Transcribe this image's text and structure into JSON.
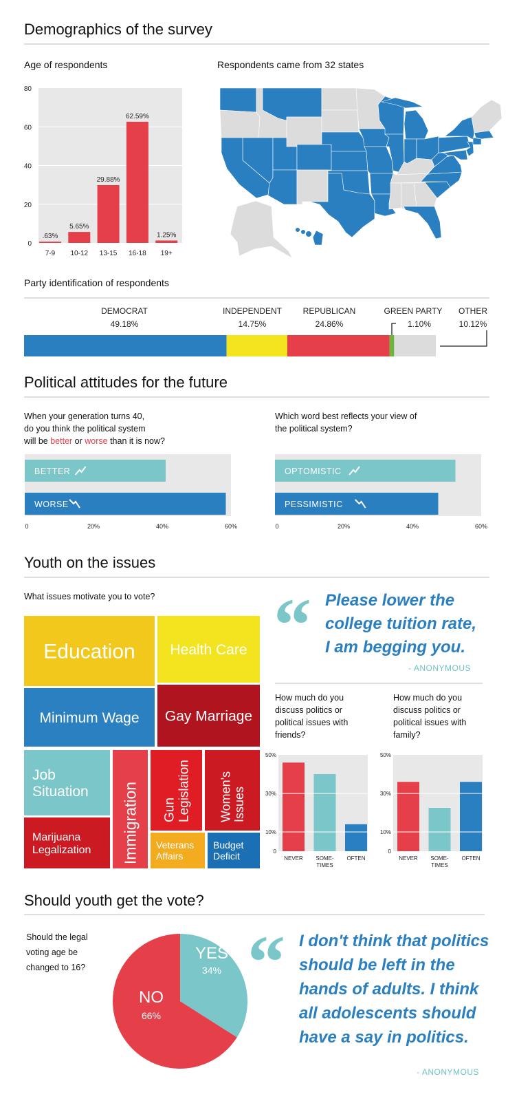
{
  "sections": {
    "demographics": "Demographics of the survey",
    "attitudes": "Political attitudes for the future",
    "issues": "Youth on the issues",
    "vote": "Should youth get the vote?"
  },
  "colors": {
    "red": "#e5404a",
    "blue": "#2a7fc0",
    "teal": "#7ac6c8",
    "yellow": "#f4e41f",
    "green": "#6bb63a",
    "gray": "#dcdcdc",
    "plot_bg": "#e8e8e9"
  },
  "map": {
    "title": "Respondents came from 32 states",
    "highlighted_color": "#2a7fc0",
    "other_color": "#dcdcdc",
    "highlighted_states": [
      "WA",
      "MT",
      "CA",
      "NV",
      "UT",
      "CO",
      "AZ",
      "NE",
      "KS",
      "OK",
      "TX",
      "IA",
      "MO",
      "AR",
      "LA",
      "WI",
      "MI",
      "IL",
      "IN",
      "OH",
      "PA",
      "NY",
      "WV",
      "VA",
      "NC",
      "SC",
      "FL",
      "NJ",
      "MD",
      "CT",
      "MA",
      "HI"
    ]
  },
  "chart_data": [
    {
      "id": "age",
      "type": "bar",
      "title": "Age of respondents",
      "categories": [
        "7-9",
        "10-12",
        "13-15",
        "16-18",
        "19+"
      ],
      "values": [
        0.63,
        5.65,
        29.88,
        62.59,
        1.25
      ],
      "data_labels": [
        ".63%",
        "5.65%",
        "29.88%",
        "62.59%",
        "1.25%"
      ],
      "ylim": [
        0,
        80
      ],
      "yticks": [
        "0",
        "20",
        "40",
        "60",
        "80"
      ],
      "grid": true,
      "color": "#e5404a"
    },
    {
      "id": "party",
      "type": "bar",
      "orientation": "stacked-horizontal",
      "title": "Party identification of respondents",
      "series": [
        {
          "name": "DEMOCRAT",
          "value": 49.18,
          "label": "49.18%",
          "color": "#2a7fc0"
        },
        {
          "name": "INDEPENDENT",
          "value": 14.75,
          "label": "14.75%",
          "color": "#f4e41f"
        },
        {
          "name": "REPUBLICAN",
          "value": 24.86,
          "label": "24.86%",
          "color": "#e5404a"
        },
        {
          "name": "GREEN PARTY",
          "value": 1.1,
          "label": "1.10%",
          "color": "#6bb63a"
        },
        {
          "name": "OTHER",
          "value": 10.12,
          "label": "10.12%",
          "color": "#dcdcdc"
        }
      ]
    },
    {
      "id": "future",
      "type": "bar",
      "orientation": "horizontal",
      "title_lines": [
        "When your generation turns 40,",
        "do you think the political system"
      ],
      "title_line3": {
        "a": "will be ",
        "b": "better",
        "c": " or ",
        "d": "worse",
        "e": " than it is now?"
      },
      "categories": [
        "BETTER",
        "WORSE"
      ],
      "values": [
        41,
        58.5
      ],
      "icons": [
        "trend-up-icon",
        "trend-down-icon"
      ],
      "colors": [
        "#7ac6c8",
        "#2a7fc0"
      ],
      "xlim": [
        0,
        60
      ],
      "xticks": [
        "0",
        "20%",
        "40%",
        "60%"
      ]
    },
    {
      "id": "word",
      "type": "bar",
      "orientation": "horizontal",
      "title_lines": [
        "Which word best reflects your view of",
        "the political system?"
      ],
      "categories": [
        "OPTOMISTIC",
        "PESSIMISTIC"
      ],
      "values": [
        52.5,
        47.5
      ],
      "icons": [
        "trend-up-icon",
        "trend-down-icon"
      ],
      "colors": [
        "#7ac6c8",
        "#2a7fc0"
      ],
      "xlim": [
        0,
        60
      ],
      "xticks": [
        "0",
        "20%",
        "40%",
        "60%"
      ]
    },
    {
      "id": "issues",
      "type": "treemap",
      "title": "What issues motivate you to vote?",
      "items": [
        {
          "label": [
            "Education"
          ],
          "color": "#f2c81d"
        },
        {
          "label": [
            "Health Care"
          ],
          "color": "#f4e41f"
        },
        {
          "label": [
            "Minimum Wage"
          ],
          "color": "#2a80c0"
        },
        {
          "label": [
            "Gay Marriage"
          ],
          "color": "#b0141f"
        },
        {
          "label": [
            "Job",
            "Situation"
          ],
          "color": "#7ac6c8"
        },
        {
          "label": [
            "Marijuana",
            "Legalization"
          ],
          "color": "#cc1a22"
        },
        {
          "label": [
            "Immigration"
          ],
          "color": "#e5404a"
        },
        {
          "label": [
            "Gun",
            "Legislation"
          ],
          "color": "#e01c24"
        },
        {
          "label": [
            "Women's",
            "Issues"
          ],
          "color": "#cc1a22"
        },
        {
          "label": [
            "Veterans",
            "Affairs"
          ],
          "color": "#f3ac1f"
        },
        {
          "label": [
            "Budget",
            "Deficit"
          ],
          "color": "#1a6fb5"
        }
      ]
    },
    {
      "id": "friends",
      "type": "bar",
      "title_lines": [
        "How much do you",
        "discuss politics or",
        "political issues with"
      ],
      "title_highlight": "friends?",
      "categories": [
        [
          "NEVER"
        ],
        [
          "SOME-",
          "TIMES"
        ],
        [
          "OFTEN"
        ]
      ],
      "values": [
        46,
        40,
        14
      ],
      "colors": [
        "#e5404a",
        "#7ac6c8",
        "#2a7fc0"
      ],
      "ylim": [
        0,
        50
      ],
      "yticks": [
        {
          "v": 0,
          "t": "0"
        },
        {
          "v": 10,
          "t": "10%"
        },
        {
          "v": 30,
          "t": "30%"
        },
        {
          "v": 50,
          "t": "50%"
        }
      ]
    },
    {
      "id": "family",
      "type": "bar",
      "title_lines": [
        "How much do you",
        "discuss politics or",
        "political issues with"
      ],
      "title_highlight": "family?",
      "categories": [
        [
          "NEVER"
        ],
        [
          "SOME-",
          "TIMES"
        ],
        [
          "OFTEN"
        ]
      ],
      "values": [
        36,
        22.5,
        36
      ],
      "colors": [
        "#e5404a",
        "#7ac6c8",
        "#2a7fc0"
      ],
      "ylim": [
        0,
        50
      ],
      "yticks": [
        {
          "v": 0,
          "t": "0"
        },
        {
          "v": 10,
          "t": "10%"
        },
        {
          "v": 30,
          "t": "30%"
        },
        {
          "v": 50,
          "t": "50%"
        }
      ]
    },
    {
      "id": "vote16",
      "type": "pie",
      "title_lines": [
        "Should the legal",
        "voting age be",
        "changed to 16?"
      ],
      "slices": [
        {
          "name": "YES",
          "value": 34,
          "label": "34%",
          "color": "#7ac6c8"
        },
        {
          "name": "NO",
          "value": 66,
          "label": "66%",
          "color": "#e5404a"
        }
      ]
    }
  ],
  "quotes": [
    {
      "lines": [
        "Please lower the",
        "college tuition rate,",
        "I am begging you."
      ],
      "author": "- ANONYMOUS"
    },
    {
      "lines": [
        "I don't think that politics",
        "should be left in the",
        "hands of adults. I think",
        "all adolescents should",
        "have a say in politics."
      ],
      "author": "- ANONYMOUS"
    }
  ]
}
